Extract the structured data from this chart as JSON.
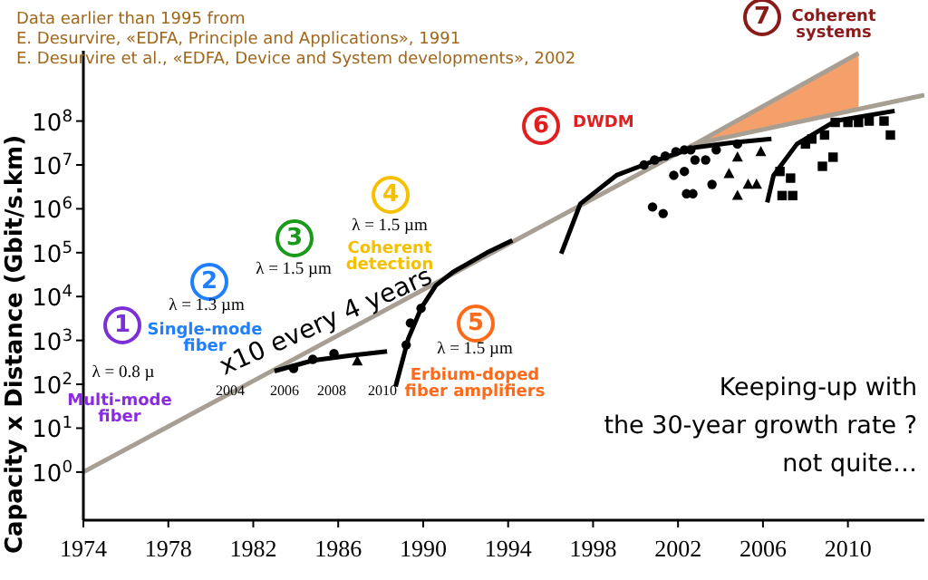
{
  "chart_data": {
    "type": "scatter",
    "ylabel": "Capacity x Distance (Gbit/s.km)",
    "annotations": [
      "Data earlier than 1995 from",
      "E. Desurvire, «EDFA, Principle and Applications», 1991",
      "E. Desurvire et al., «EDFA, Device and System developments», 2002",
      "1",
      "λ = 0.8 µ",
      "Multi-mode fiber",
      "2",
      "λ = 1.3 µm",
      "Single-mode fiber",
      "3",
      "λ = 1.5 µm",
      "4",
      "λ = 1.5 µm",
      "Coherent detection",
      "5",
      "λ = 1.5 µm",
      "Erbium-doped fiber amplifiers",
      "6",
      "DWDM",
      "7",
      "Coherent systems",
      "x10 every 4 years",
      "Keeping-up with",
      "the 30-year growth rate ?",
      "not quite…",
      "2004",
      "2006",
      "2008",
      "2010"
    ],
    "xlim": [
      1974,
      2013.6
    ],
    "xticks": [
      1974,
      1978,
      1982,
      1986,
      1990,
      1994,
      1998,
      2002,
      2006,
      2010
    ],
    "ylim": [
      0.08,
      4000000000
    ],
    "log": "y",
    "yticks": [
      {
        "value": 1,
        "label": "10$^{0}$"
      },
      {
        "value": 10,
        "label": "10$^{1}$"
      },
      {
        "value": 100,
        "label": "10$^{2}$"
      },
      {
        "value": 1000,
        "label": "10$^{3}$"
      },
      {
        "value": 10000,
        "label": "10$^{4}$"
      },
      {
        "value": 100000,
        "label": "10$^{5}$"
      },
      {
        "value": 1000000,
        "label": "10$^{6}$"
      },
      {
        "value": 10000000,
        "label": "10$^{7}$"
      },
      {
        "value": 100000000,
        "label": "10$^{8}$"
      }
    ],
    "series": [
      {
        "type": "line",
        "color": "#a89f94",
        "x": [
          1974,
          2002.8,
          2010.5
        ],
        "values": [
          1,
          30000000,
          3500000000
        ],
        "lower": [
          null,
          30000000,
          190000000
        ],
        "upper": [
          null,
          30000000,
          3500000000
        ]
      },
      {
        "type": "line",
        "color": "#a89f94",
        "x": [
          2002.8,
          2013.6
        ],
        "values": [
          30000000,
          390000000
        ]
      },
      {
        "type": "line",
        "color": "#000000",
        "x": [
          1983.0,
          1984.8,
          1986.5,
          1988.3
        ],
        "values": [
          200,
          350,
          450,
          560
        ]
      },
      {
        "type": "line",
        "color": "#000000",
        "x": [
          1988.7,
          1989.3,
          1989.9,
          1990.6,
          1991.4,
          1993,
          1994.2
        ],
        "values": [
          89,
          1100,
          5400,
          18000,
          36000,
          100000,
          190000
        ]
      },
      {
        "type": "line",
        "color": "#000000",
        "x": [
          1996.5,
          1997.4,
          1999.1,
          2000.6,
          2002.8,
          2004.5,
          2006.4
        ],
        "values": [
          95000,
          1300000,
          5800000,
          11000000,
          25000000,
          32000000,
          39000000
        ]
      },
      {
        "type": "line",
        "color": "#000000",
        "x": [
          2006.2,
          2006.5,
          2007.6,
          2009.4,
          2012.2
        ],
        "values": [
          1400000,
          5800000,
          30000000,
          100000000,
          170000000
        ]
      },
      {
        "marker": "circle",
        "color": "#000000",
        "x": [
          1983.9,
          1984.8,
          1985.8,
          1989.2,
          1989.4,
          1989.9,
          2000.4,
          2000.9,
          2001.4,
          2001.9,
          2002.3,
          2002.6,
          2000.8,
          2001.3,
          2001.8,
          2002.3,
          2002.4,
          2002.7,
          2002.8,
          2003.3,
          2003.6,
          2003.8,
          2004.8
        ],
        "values": [
          230,
          370,
          500,
          790,
          2500,
          5400,
          10000000,
          13000000,
          16000000,
          20000000,
          22000000,
          22000000,
          1100000,
          780000,
          5800000,
          7100000,
          2200000,
          2200000,
          13000000,
          13000000,
          3600000,
          22000000,
          30000000
        ]
      },
      {
        "marker": "triangle",
        "color": "#000000",
        "x": [
          1986.9,
          2004.4,
          2004.8,
          2005.3,
          2005.7,
          2004.8,
          2005.9
        ],
        "values": [
          340,
          6300000,
          2000000,
          3600000,
          3600000,
          15000000,
          20000000
        ]
      },
      {
        "marker": "square",
        "color": "#000000",
        "x": [
          2006.8,
          2007.3,
          2007.4,
          2006.9,
          2008.0,
          2008.3,
          2008.8,
          2009.3,
          2008.9,
          2009.4,
          2010.0,
          2010.5,
          2011.0,
          2011.7,
          2012.0
        ],
        "values": [
          7100000,
          5000000,
          2000000,
          2000000,
          30000000,
          39000000,
          9300000,
          15000000,
          48000000,
          93000000,
          93000000,
          93000000,
          100000000,
          100000000,
          48000000
        ]
      }
    ]
  }
}
